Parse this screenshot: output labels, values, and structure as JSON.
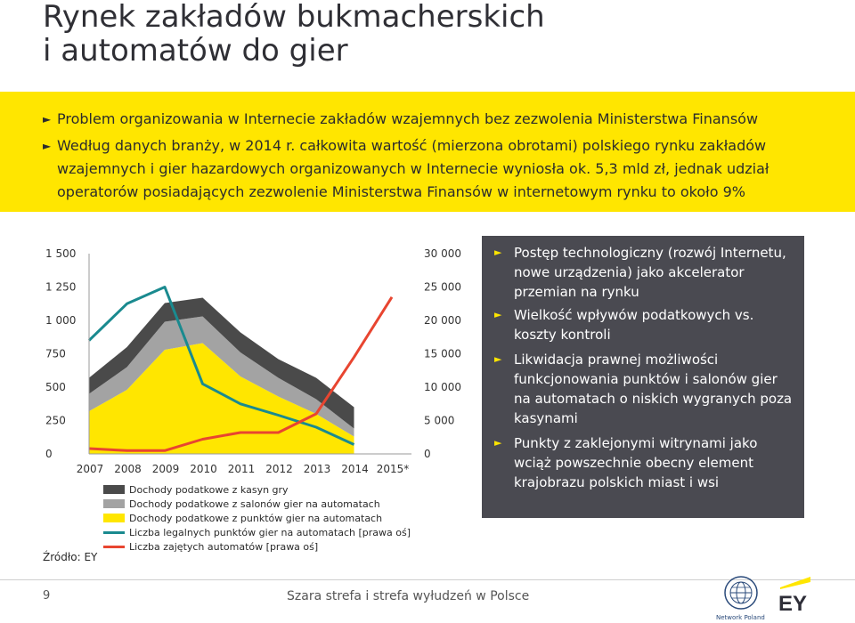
{
  "title": {
    "line1": "Rynek zakładów bukmacherskich",
    "line2": "i automatów do gier"
  },
  "bullets": [
    "Problem organizowania w Internecie zakładów wzajemnych bez zezwolenia Ministerstwa Finansów",
    "Według danych branży, w 2014 r. całkowita wartość (mierzona obrotami) polskiego rynku zakładów wzajemnych i gier hazardowych organizowanych w Internecie wyniosła ok. 5,3 mld zł, jednak udział operatorów posiadających zezwolenie Ministerstwa Finansów w internetowym rynku to około 9%"
  ],
  "bullet_marker": "►",
  "panel": {
    "items": [
      "Postęp technologiczny (rozwój Internetu, nowe urządzenia) jako akcelerator przemian na rynku",
      "Wielkość wpływów podatkowych vs. koszty kontroli",
      "Likwidacja prawnej możliwości funkcjonowania punktów i salonów gier na automatach o niskich wygranych poza kasynami",
      "Punkty z zaklejonymi witrynami jako wciąż powszechnie obecny element krajobrazu polskich miast i wsi"
    ]
  },
  "chart_data": {
    "type": "area",
    "categories": [
      "2007",
      "2008",
      "2009",
      "2010",
      "2011",
      "2012",
      "2013",
      "2014",
      "2015*"
    ],
    "left_axis": {
      "ticks": [
        "0",
        "250",
        "500",
        "750",
        "1 000",
        "1 250",
        "1 500"
      ],
      "range": [
        0,
        1500
      ]
    },
    "right_axis": {
      "ticks": [
        "0",
        "5 000",
        "10 000",
        "15 000",
        "20 000",
        "25 000",
        "30 000"
      ],
      "range": [
        0,
        30000
      ]
    },
    "stacked_area_series": [
      {
        "name": "Dochody podatkowe z punktów gier na automatach",
        "color": "#ffe600",
        "values": [
          320,
          480,
          780,
          830,
          580,
          430,
          300,
          130,
          null
        ]
      },
      {
        "name": "Dochody podatkowe z salonów gier na automatach",
        "color": "#a3a3a3",
        "values": [
          130,
          170,
          210,
          200,
          180,
          140,
          110,
          60,
          null
        ]
      },
      {
        "name": "Dochody podatkowe z kasyn gry",
        "color": "#4a4a4a",
        "values": [
          120,
          150,
          140,
          140,
          150,
          140,
          160,
          160,
          null
        ]
      }
    ],
    "line_series": [
      {
        "name": "Liczba legalnych punktów gier na automatach [prawa oś]",
        "color": "#1a8a8f",
        "values": [
          17000,
          22500,
          25000,
          10500,
          7500,
          5800,
          4000,
          1400,
          null
        ]
      },
      {
        "name": "Liczba zajętych automatów [prawa oś]",
        "color": "#e84530",
        "values": [
          800,
          500,
          500,
          2200,
          3200,
          3200,
          6000,
          14500,
          23500
        ]
      }
    ],
    "legend_order": [
      "Dochody podatkowe z kasyn gry",
      "Dochody podatkowe z salonów gier na automatach",
      "Dochody podatkowe z punktów gier na automatach",
      "Liczba legalnych punktów gier na automatach [prawa oś]",
      "Liczba zajętych automatów [prawa oś]"
    ],
    "legend_placement": "bottom",
    "grid": false,
    "source": "Źródło: EY"
  },
  "footer": {
    "page": "9",
    "text": "Szara strefa i strefa wyłudzeń w Polsce"
  },
  "logos": {
    "un_global_compact": "Network Poland",
    "ey": "EY"
  },
  "colors": {
    "band": "#ffe600",
    "panel": "#4a4a51",
    "accent": "#ffe600",
    "kasyn": "#4a4a4a",
    "salonow": "#a3a3a3",
    "punktow": "#ffe600",
    "legalnych": "#1a8a8f",
    "zajetych": "#e84530"
  }
}
